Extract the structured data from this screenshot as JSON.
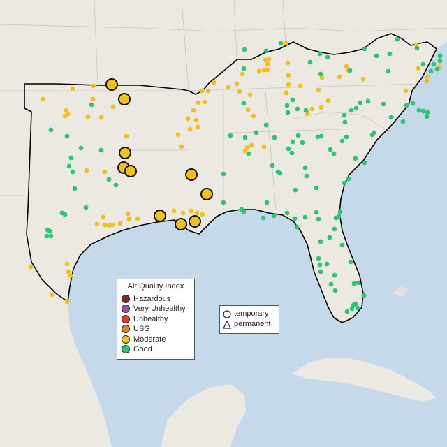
{
  "legend": {
    "title": "Air Quality Index",
    "categories": [
      {
        "label": "Hazardous",
        "color": "#7e2b24"
      },
      {
        "label": "Very Unhealthy",
        "color": "#8f55b8"
      },
      {
        "label": "Unhealthy",
        "color": "#e23a29"
      },
      {
        "label": "USG",
        "color": "#e6821e"
      },
      {
        "label": "Moderate",
        "color": "#f2c01c"
      },
      {
        "label": "Good",
        "color": "#2ec572"
      }
    ],
    "shapes": [
      {
        "label": "temporary",
        "icon": "circle-icon"
      },
      {
        "label": "permanent",
        "icon": "triangle-icon"
      }
    ]
  },
  "colors": {
    "land": "#ece9e3",
    "water": "#c5d8ea",
    "border": "#000000"
  }
}
